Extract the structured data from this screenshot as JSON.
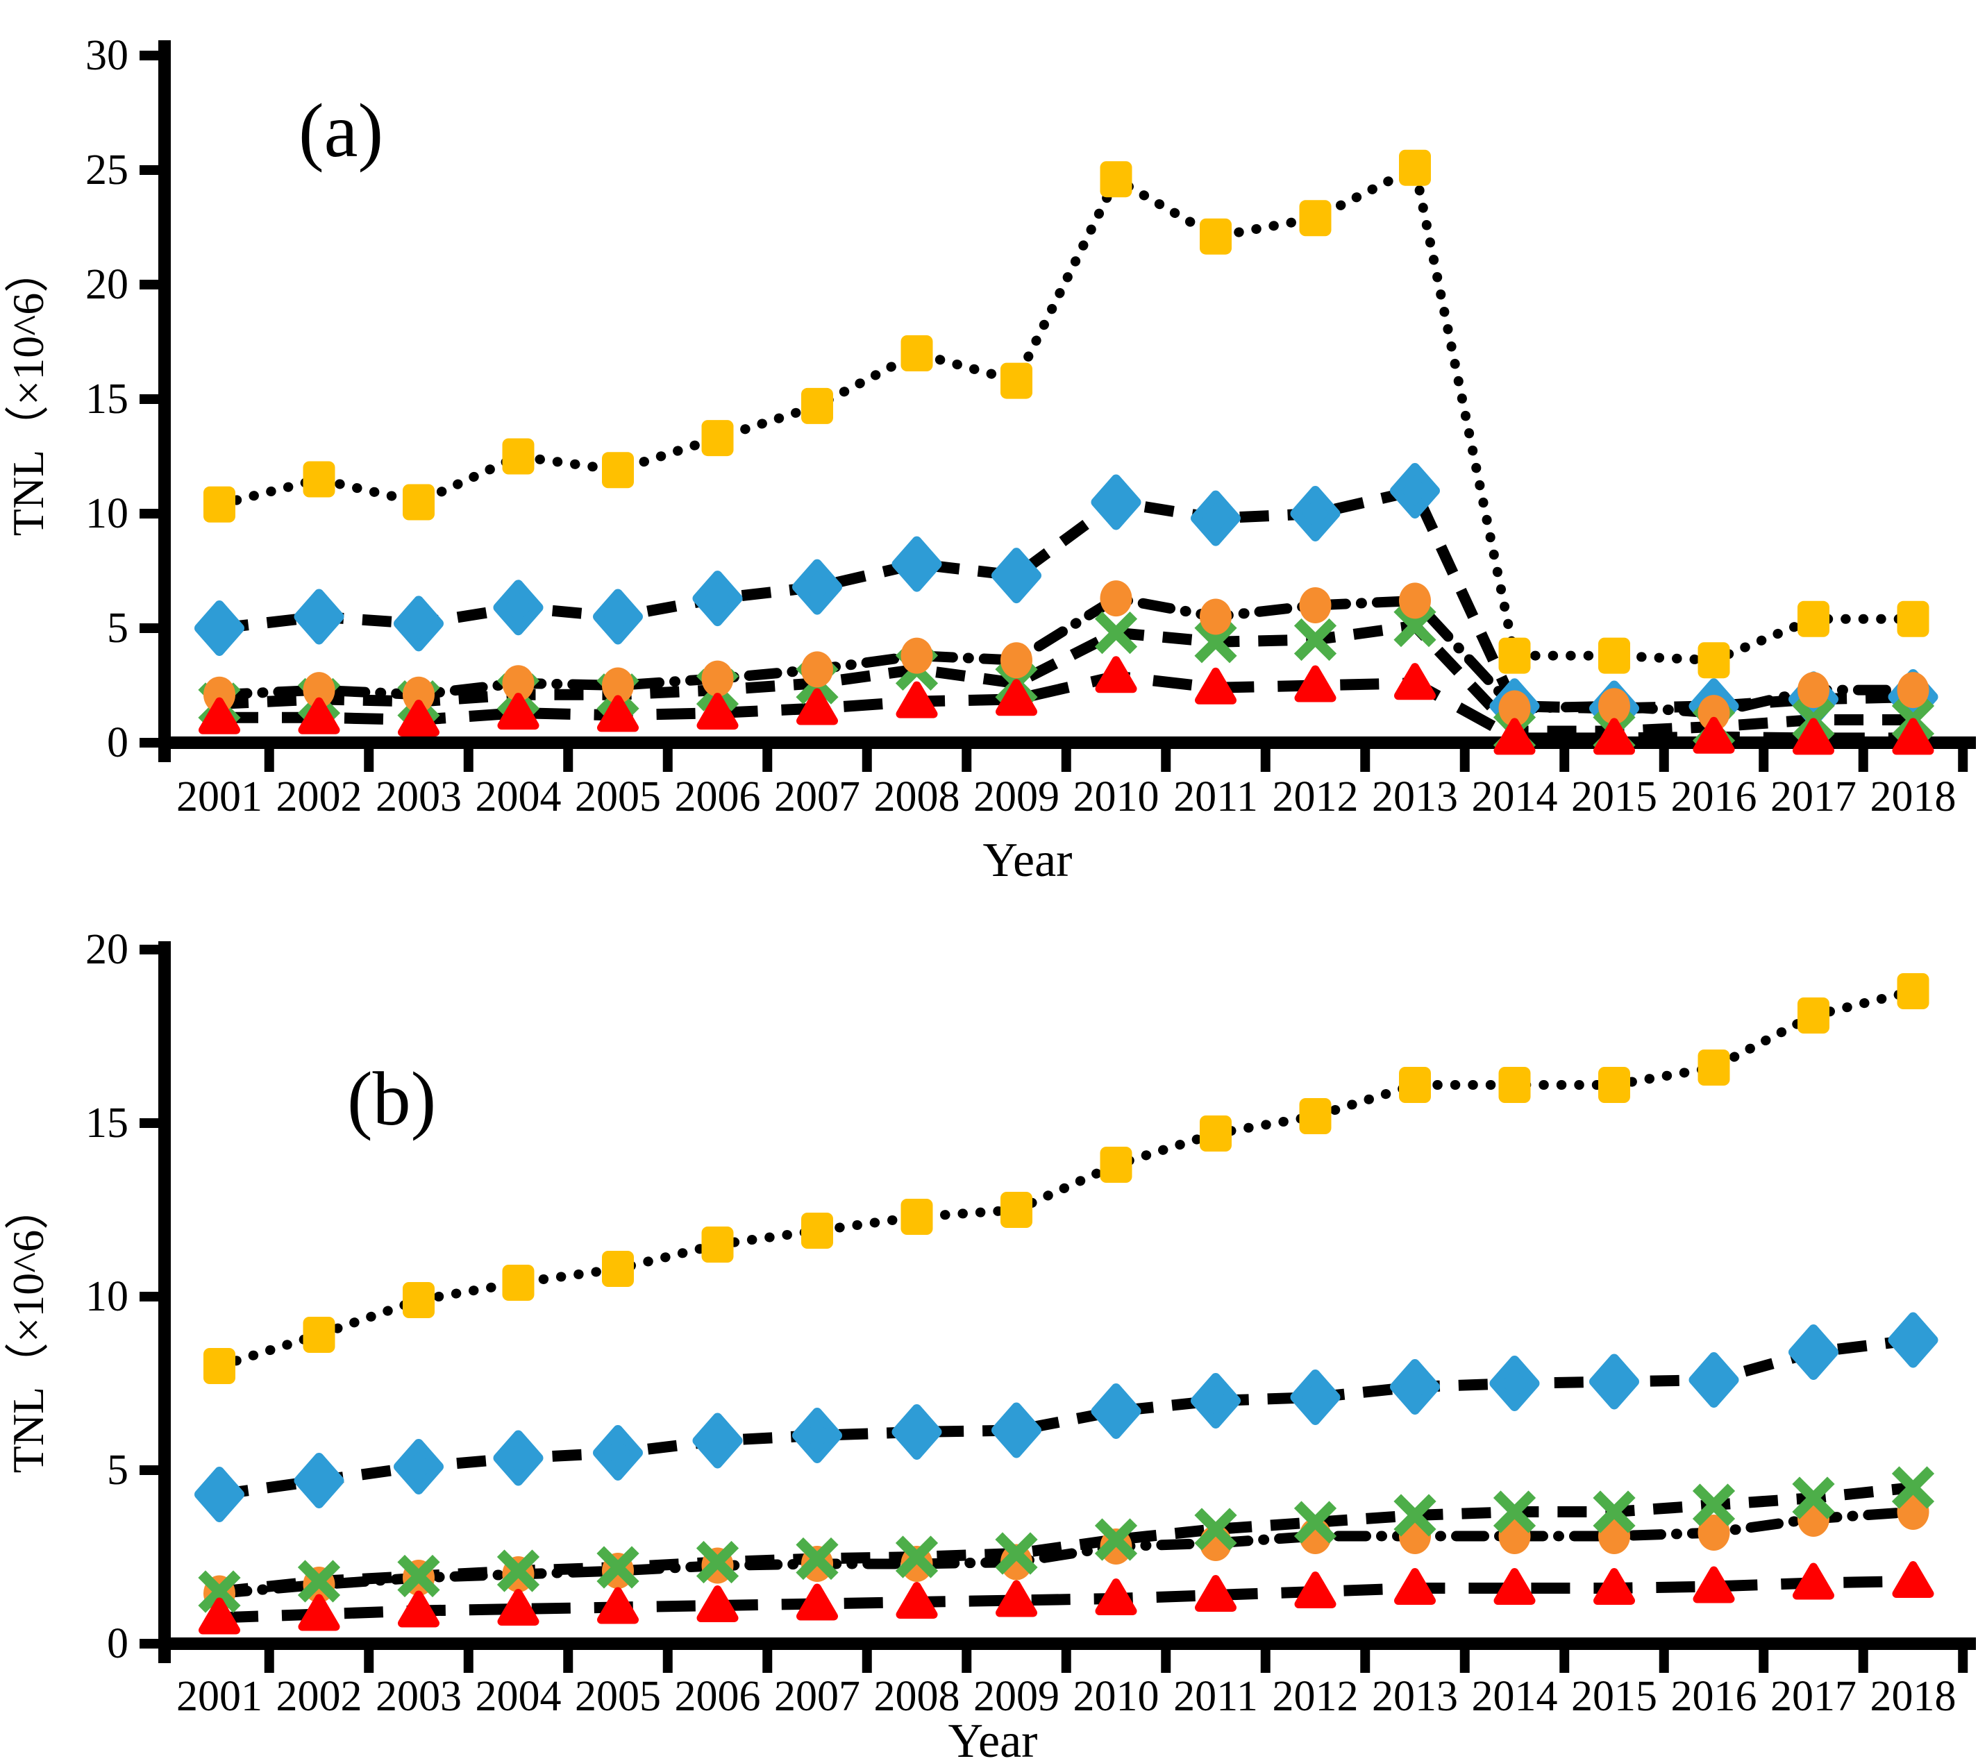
{
  "figure_background": "#FFFFFF",
  "axis_color": "#000000",
  "chart_data": [
    {
      "type": "line",
      "panel_label": "(a)",
      "xlabel": "Year",
      "ylabel": "TNL（×10^6）",
      "ylim": [
        0,
        30
      ],
      "yticks": [
        0,
        5,
        10,
        15,
        20,
        25,
        30
      ],
      "grid": false,
      "legend": "none",
      "categories": [
        2001,
        2002,
        2003,
        2004,
        2005,
        2006,
        2007,
        2008,
        2009,
        2010,
        2011,
        2012,
        2013,
        2014,
        2015,
        2016,
        2017,
        2018
      ],
      "series": [
        {
          "name": "yellow-square-series",
          "marker": "square",
          "marker_color": "#FFC000",
          "line_color": "#000000",
          "line_style": "dotted",
          "values": [
            10.4,
            11.5,
            10.5,
            12.5,
            11.9,
            13.3,
            14.7,
            17.0,
            15.8,
            24.6,
            22.1,
            22.9,
            25.1,
            3.8,
            3.8,
            3.6,
            5.4,
            5.4
          ]
        },
        {
          "name": "blue-diamond-series",
          "marker": "diamond",
          "marker_color": "#2E9CD6",
          "line_color": "#000000",
          "line_style": "dashed",
          "values": [
            5.0,
            5.5,
            5.2,
            5.9,
            5.5,
            6.3,
            6.8,
            7.8,
            7.3,
            10.5,
            9.8,
            10.0,
            11.0,
            1.6,
            1.5,
            1.6,
            1.9,
            2.0
          ]
        },
        {
          "name": "green-x-series",
          "marker": "x",
          "marker_color": "#4DAE49",
          "line_color": "#000000",
          "line_style": "dashed",
          "values": [
            1.7,
            1.9,
            1.8,
            2.1,
            2.1,
            2.3,
            2.6,
            3.2,
            2.6,
            4.8,
            4.4,
            4.5,
            5.1,
            0.5,
            0.5,
            0.7,
            1.0,
            1.0
          ]
        },
        {
          "name": "orange-circle-series",
          "marker": "circle",
          "marker_color": "#F68D2E",
          "line_color": "#000000",
          "line_style": "dash-dot",
          "values": [
            2.1,
            2.3,
            2.1,
            2.6,
            2.5,
            2.8,
            3.2,
            3.8,
            3.6,
            6.3,
            5.5,
            6.0,
            6.2,
            1.5,
            1.6,
            1.3,
            2.3,
            2.3
          ]
        },
        {
          "name": "red-triangle-series",
          "marker": "triangle",
          "marker_color": "#FF0000",
          "line_color": "#000000",
          "line_style": "long-dash",
          "values": [
            1.1,
            1.1,
            1.0,
            1.3,
            1.2,
            1.3,
            1.5,
            1.8,
            1.9,
            2.9,
            2.4,
            2.5,
            2.6,
            0.2,
            0.2,
            0.25,
            0.2,
            0.2
          ]
        }
      ]
    },
    {
      "type": "line",
      "panel_label": "(b)",
      "xlabel": "Year",
      "ylabel": "TNL（×10^6）",
      "ylim": [
        0,
        20
      ],
      "yticks": [
        0,
        5,
        10,
        15,
        20
      ],
      "grid": false,
      "legend": "none",
      "categories": [
        2001,
        2002,
        2003,
        2004,
        2005,
        2006,
        2007,
        2008,
        2009,
        2010,
        2011,
        2012,
        2013,
        2014,
        2015,
        2016,
        2017,
        2018
      ],
      "series": [
        {
          "name": "yellow-square-series",
          "marker": "square",
          "marker_color": "#FFC000",
          "line_color": "#000000",
          "line_style": "dotted",
          "values": [
            8.0,
            8.9,
            9.9,
            10.4,
            10.8,
            11.5,
            11.9,
            12.3,
            12.5,
            13.8,
            14.7,
            15.2,
            16.1,
            16.1,
            16.1,
            16.6,
            18.1,
            18.8
          ]
        },
        {
          "name": "blue-diamond-series",
          "marker": "diamond",
          "marker_color": "#2E9CD6",
          "line_color": "#000000",
          "line_style": "dashed",
          "values": [
            4.3,
            4.7,
            5.1,
            5.35,
            5.5,
            5.85,
            6.0,
            6.1,
            6.15,
            6.7,
            7.0,
            7.1,
            7.4,
            7.5,
            7.55,
            7.6,
            8.4,
            8.75
          ]
        },
        {
          "name": "orange-circle-series",
          "marker": "circle",
          "marker_color": "#F68D2E",
          "line_color": "#000000",
          "line_style": "dash-dot",
          "values": [
            1.45,
            1.7,
            1.9,
            2.0,
            2.1,
            2.25,
            2.3,
            2.3,
            2.35,
            2.8,
            2.9,
            3.1,
            3.1,
            3.1,
            3.1,
            3.2,
            3.6,
            3.8
          ]
        },
        {
          "name": "green-x-series",
          "marker": "x",
          "marker_color": "#4DAE49",
          "line_color": "#000000",
          "line_style": "dashed",
          "values": [
            1.5,
            1.8,
            1.95,
            2.1,
            2.2,
            2.35,
            2.45,
            2.5,
            2.6,
            3.0,
            3.3,
            3.5,
            3.7,
            3.8,
            3.8,
            4.0,
            4.2,
            4.5
          ]
        },
        {
          "name": "red-triangle-series",
          "marker": "triangle",
          "marker_color": "#FF0000",
          "line_color": "#000000",
          "line_style": "long-dash",
          "values": [
            0.75,
            0.85,
            0.95,
            1.0,
            1.05,
            1.1,
            1.15,
            1.2,
            1.25,
            1.3,
            1.4,
            1.5,
            1.6,
            1.6,
            1.6,
            1.65,
            1.75,
            1.8
          ]
        }
      ]
    }
  ]
}
